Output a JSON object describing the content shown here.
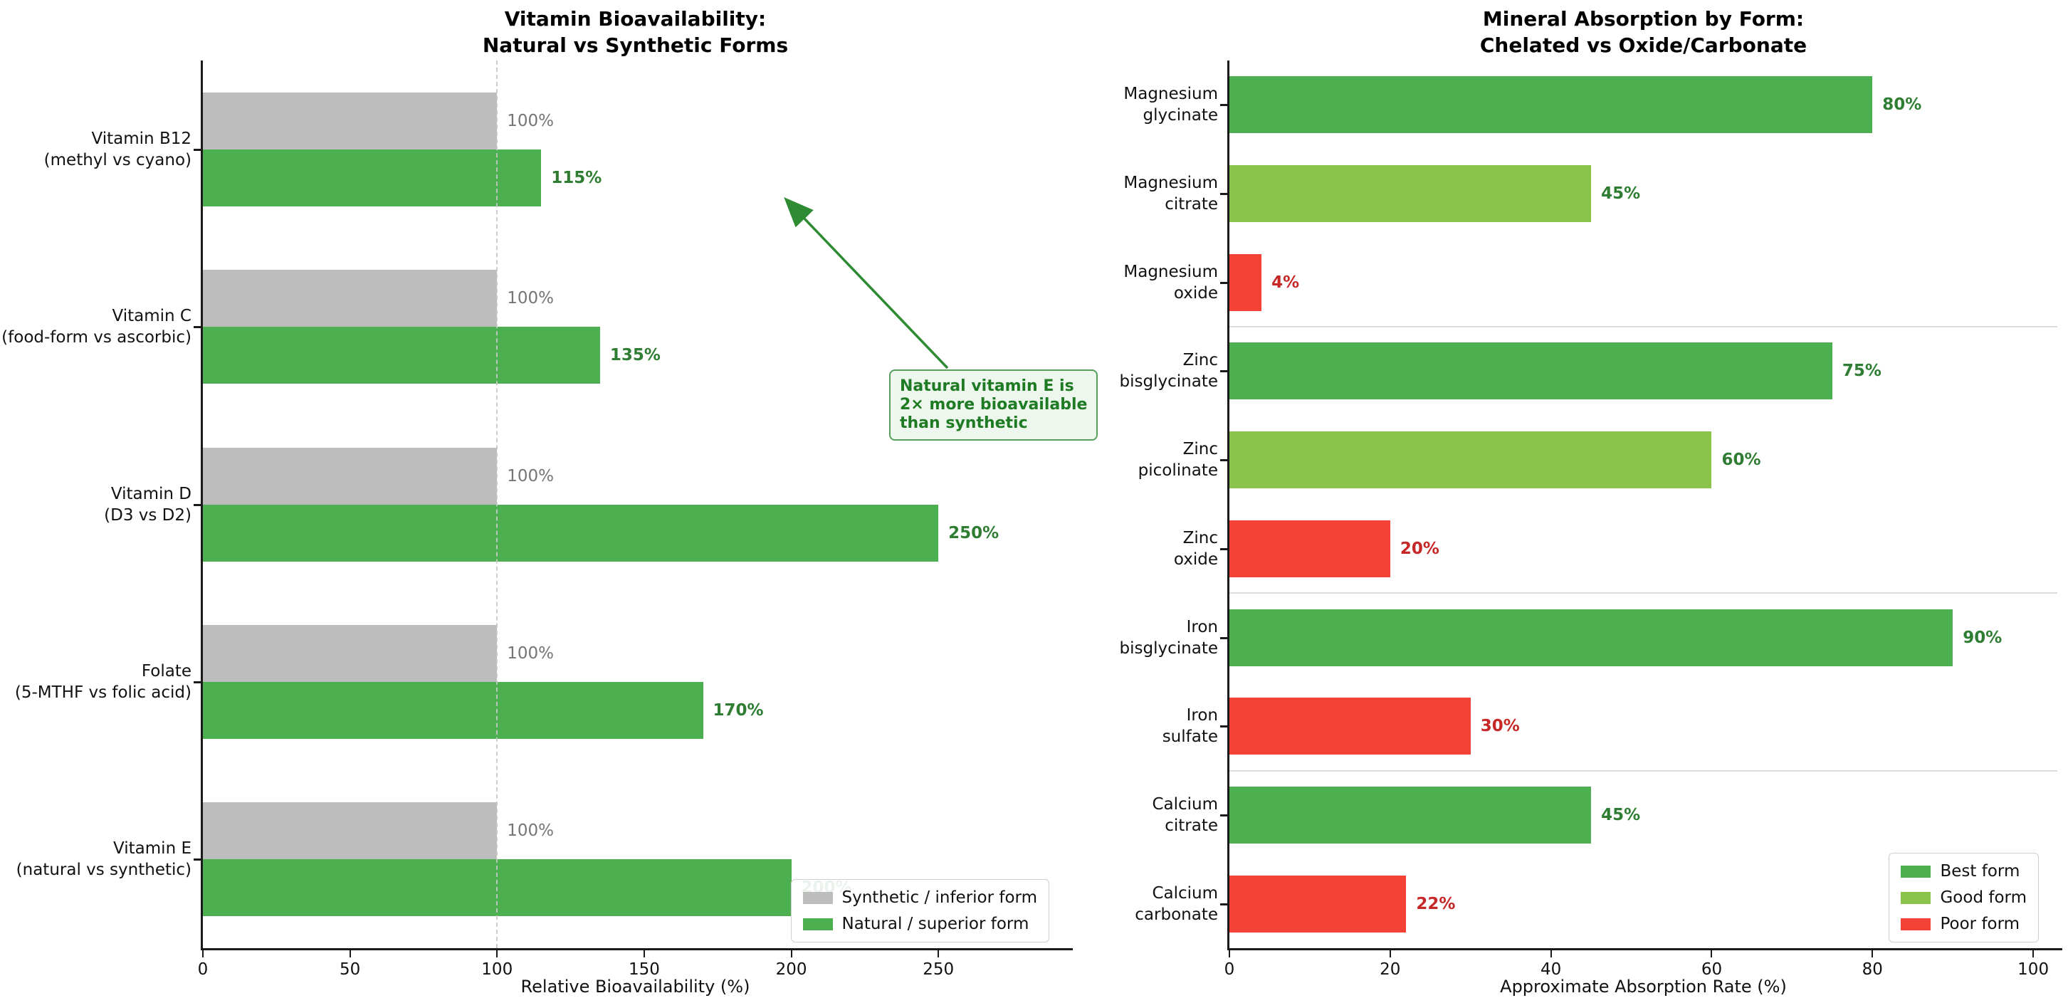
{
  "page": {
    "background": "#ffffff"
  },
  "chart_data": [
    {
      "type": "bar",
      "orientation": "horizontal",
      "title": "Vitamin Bioavailability:\nNatural vs Synthetic Forms",
      "xlabel": "Relative Bioavailability (%)",
      "xlim": [
        0,
        294
      ],
      "xticks": [
        0,
        50,
        100,
        150,
        200,
        250
      ],
      "grid": false,
      "reference_line_x": 100,
      "categories": [
        "Vitamin B12\n(methyl vs cyano)",
        "Vitamin C\n(food-form vs ascorbic)",
        "Vitamin D\n(D3 vs D2)",
        "Folate\n(5-MTHF vs folic acid)",
        "Vitamin E\n(natural vs synthetic)"
      ],
      "series": [
        {
          "name": "Synthetic / inferior form",
          "color": "#bdbdbd",
          "label_color": "#757575",
          "label_bold": false,
          "values": [
            100,
            100,
            100,
            100,
            100
          ]
        },
        {
          "name": "Natural / superior form",
          "color": "#4caf50",
          "label_color": "#2e7d32",
          "label_bold": true,
          "values": [
            115,
            135,
            250,
            170,
            200
          ]
        }
      ],
      "value_label_suffix": "%",
      "legend_position": "lower right",
      "annotation": {
        "text": "Natural vitamin E is\n2× more bioavailable\nthan synthetic",
        "text_color": "#1e7b24",
        "border_color": "#57a05c",
        "fill_color": "#edf7ed",
        "arrow_color": "#2e8b34"
      }
    },
    {
      "type": "bar",
      "orientation": "horizontal",
      "title": "Mineral Absorption by Form:\nChelated vs Oxide/Carbonate",
      "xlabel": "Approximate Absorption Rate (%)",
      "xlim": [
        0,
        103
      ],
      "xticks": [
        0,
        20,
        40,
        60,
        80,
        100
      ],
      "grid": false,
      "categories": [
        "Magnesium\nglycinate",
        "Magnesium\ncitrate",
        "Magnesium\noxide",
        "Zinc\nbisglycinate",
        "Zinc\npicolinate",
        "Zinc\noxide",
        "Iron\nbisglycinate",
        "Iron\nsulfate",
        "Calcium\ncitrate",
        "Calcium\ncarbonate"
      ],
      "values": [
        80,
        45,
        4,
        75,
        60,
        20,
        90,
        30,
        45,
        22
      ],
      "tiers": [
        "best",
        "good",
        "poor",
        "best",
        "good",
        "poor",
        "best",
        "poor",
        "best",
        "poor"
      ],
      "tier_colors": {
        "best": "#4caf50",
        "good": "#8bc34a",
        "poor": "#f44336"
      },
      "tier_label_colors": {
        "best": "#2e7d32",
        "good": "#2e7d32",
        "poor": "#c62828"
      },
      "value_label_suffix": "%",
      "legend": [
        {
          "label": "Best form",
          "tier": "best"
        },
        {
          "label": "Good form",
          "tier": "good"
        },
        {
          "label": "Poor form",
          "tier": "poor"
        }
      ],
      "legend_position": "lower right",
      "group_separators_after": [
        2,
        5,
        7
      ]
    }
  ]
}
